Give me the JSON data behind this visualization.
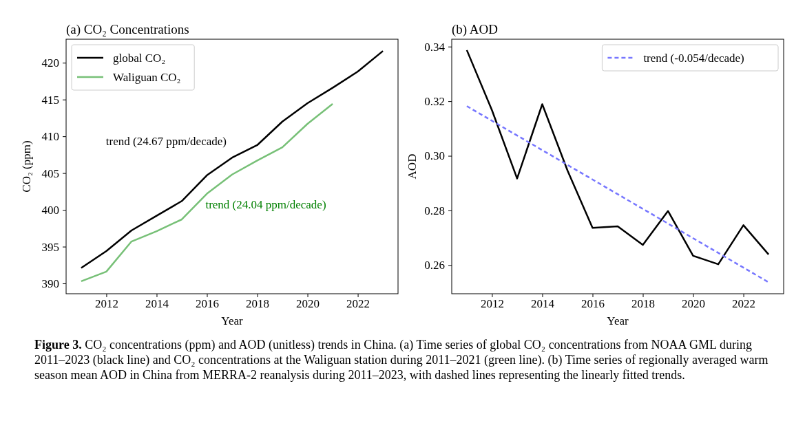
{
  "chart_data": [
    {
      "type": "line",
      "title": "(a) CO₂ Concentrations",
      "xlabel": "Year",
      "ylabel": "CO₂ (ppm)",
      "x": [
        2011,
        2012,
        2013,
        2014,
        2015,
        2016,
        2017,
        2018,
        2019,
        2020,
        2021,
        2022,
        2023
      ],
      "xlim": [
        2010.4,
        2023.6
      ],
      "xticks": [
        2012,
        2014,
        2016,
        2018,
        2020,
        2022
      ],
      "ylim": [
        388.6,
        423.2
      ],
      "yticks": [
        390,
        395,
        400,
        405,
        410,
        415,
        420
      ],
      "legend": "top left",
      "series": [
        {
          "name": "global CO₂",
          "color": "#000000",
          "values": [
            392.1,
            394.4,
            397.2,
            399.2,
            401.2,
            404.7,
            407.1,
            408.8,
            412.0,
            414.5,
            416.6,
            418.8,
            421.6
          ]
        },
        {
          "name": "Waliguan CO₂",
          "color": "#77c077",
          "values": [
            390.3,
            391.6,
            395.7,
            397.1,
            398.7,
            402.2,
            404.8,
            406.7,
            408.5,
            411.7,
            414.4,
            null,
            null
          ]
        }
      ],
      "annotations": [
        "trend (24.67 ppm/decade)",
        "trend (24.04 ppm/decade)"
      ]
    },
    {
      "type": "line",
      "title": "(b) AOD",
      "xlabel": "Year",
      "ylabel": "AOD",
      "x": [
        2011,
        2012,
        2013,
        2014,
        2015,
        2016,
        2017,
        2018,
        2019,
        2020,
        2021,
        2022,
        2023
      ],
      "xlim": [
        2010.4,
        2023.6
      ],
      "xticks": [
        2012,
        2014,
        2016,
        2018,
        2020,
        2022
      ],
      "ylim": [
        0.2495,
        0.3427
      ],
      "yticks": [
        {
          "value": 0.26,
          "label": "0.26"
        },
        {
          "value": 0.28,
          "label": "0.28"
        },
        {
          "value": 0.3,
          "label": "0.30"
        },
        {
          "value": 0.32,
          "label": "0.32"
        },
        {
          "value": 0.34,
          "label": "0.34"
        }
      ],
      "legend": "top right",
      "series": [
        {
          "color": "#000000",
          "values": [
            0.3387,
            0.3167,
            0.2917,
            0.3189,
            0.2947,
            0.2736,
            0.2742,
            0.2674,
            0.2798,
            0.2634,
            0.2603,
            0.2746,
            0.2639
          ]
        },
        {
          "name": "trend (-0.054/decade)",
          "color": "#7777ff",
          "line_style": "dashed",
          "x": [
            2011,
            2023
          ],
          "values": [
            0.3182,
            0.2537
          ]
        }
      ],
      "annotations": [
        "Figure 3. CO₂ concentrations (ppm) and AOD (unitless) trends in China. (a) Time series of global CO₂ concentrations from NOAA GML during 2011–2023 (black line) and CO₂ concentrations at the Waliguan station during 2011–2021 (green line). (b) Time series of regionally averaged warm season mean AOD in China from MERRA-2 reanalysis during 2011–2023, with dashed lines representing the linearly fitted trends."
      ]
    }
  ]
}
